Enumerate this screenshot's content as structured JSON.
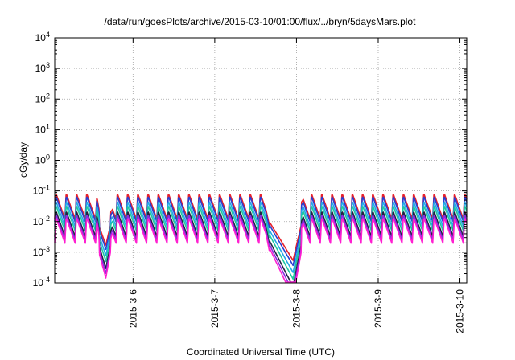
{
  "chart_data": {
    "type": "line",
    "title": "/data/run/goesPlots/archive/2015-03-10/01:00/flux/../bryn/5daysMars.plot",
    "xlabel": "Coordinated Universal Time (UTC)",
    "ylabel": "cGy/day",
    "yscale": "log",
    "ylim": [
      0.0001,
      10000
    ],
    "y_ticks": [
      {
        "base": "10",
        "exp": "-4",
        "value": 0.0001
      },
      {
        "base": "10",
        "exp": "-3",
        "value": 0.001
      },
      {
        "base": "10",
        "exp": "-2",
        "value": 0.01
      },
      {
        "base": "10",
        "exp": "-1",
        "value": 0.1
      },
      {
        "base": "10",
        "exp": "0",
        "value": 1
      },
      {
        "base": "10",
        "exp": "1",
        "value": 10
      },
      {
        "base": "10",
        "exp": "2",
        "value": 100
      },
      {
        "base": "10",
        "exp": "3",
        "value": 1000
      },
      {
        "base": "10",
        "exp": "4",
        "value": 10000
      }
    ],
    "xlim": [
      "2015-03-05T01:00",
      "2015-03-10T02:00"
    ],
    "x_ticks": [
      {
        "label": "2015-3-6",
        "value": "2015-03-06T00:00"
      },
      {
        "label": "2015-3-7",
        "value": "2015-03-07T00:00"
      },
      {
        "label": "2015-3-8",
        "value": "2015-03-08T00:00"
      },
      {
        "label": "2015-3-9",
        "value": "2015-03-09T00:00"
      },
      {
        "label": "2015-3-10",
        "value": "2015-03-10T00:00"
      }
    ],
    "grid": true,
    "legend": "none",
    "series": [
      {
        "color": "#e8202a",
        "level": 0.032
      },
      {
        "color": "#2a3fd0",
        "level": 0.026
      },
      {
        "color": "#23a8e8",
        "level": 0.018
      },
      {
        "color": "#1fc8a0",
        "level": 0.013
      },
      {
        "color": "#222244",
        "level": 0.0085
      },
      {
        "color": "#8a2be2",
        "level": 0.0066
      },
      {
        "color": "#ff1fd0",
        "level": 0.0052
      }
    ],
    "profile": {
      "oscillation_period_hours": 3,
      "peak_over_trough_ratio": 7,
      "dips": [
        {
          "start": "2015-03-05T13:00",
          "minimum": "2015-03-05T16:00",
          "end": "2015-03-05T18:00",
          "depth_decades": 0.95
        },
        {
          "start": "2015-03-07T15:00",
          "minimum": "2015-03-07T23:00",
          "end": "2015-03-08T02:00",
          "depth_decades": 1.45
        }
      ]
    }
  }
}
